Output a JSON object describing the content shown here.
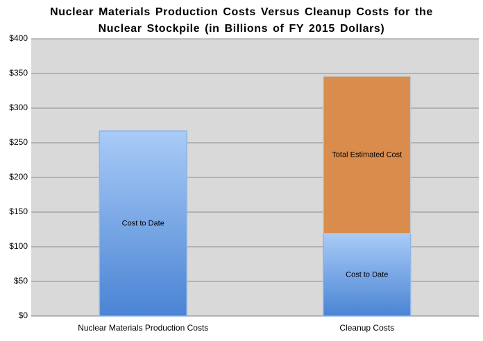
{
  "chart_data": {
    "type": "stacked-bar",
    "title": "Nuclear Materials Production Costs Versus Cleanup Costs for the Nuclear Stockpile (in Billions of FY 2015 Dollars)",
    "categories": [
      "Nuclear Materials Production Costs",
      "Cleanup Costs"
    ],
    "series": [
      {
        "name": "Cost to Date",
        "color": "#5b93dc",
        "values": [
          267,
          119
        ]
      },
      {
        "name": "Total Estimated Cost",
        "color": "#d98c4c",
        "values": [
          null,
          227
        ]
      }
    ],
    "ylim": [
      0,
      400
    ],
    "yticks": [
      {
        "value": 0,
        "label": "$0"
      },
      {
        "value": 50,
        "label": "$50"
      },
      {
        "value": 100,
        "label": "$100"
      },
      {
        "value": 150,
        "label": "$150"
      },
      {
        "value": 200,
        "label": "$200"
      },
      {
        "value": 250,
        "label": "$250"
      },
      {
        "value": 300,
        "label": "$300"
      },
      {
        "value": 350,
        "label": "$350"
      },
      {
        "value": 400,
        "label": "$400"
      }
    ],
    "grid": true
  }
}
